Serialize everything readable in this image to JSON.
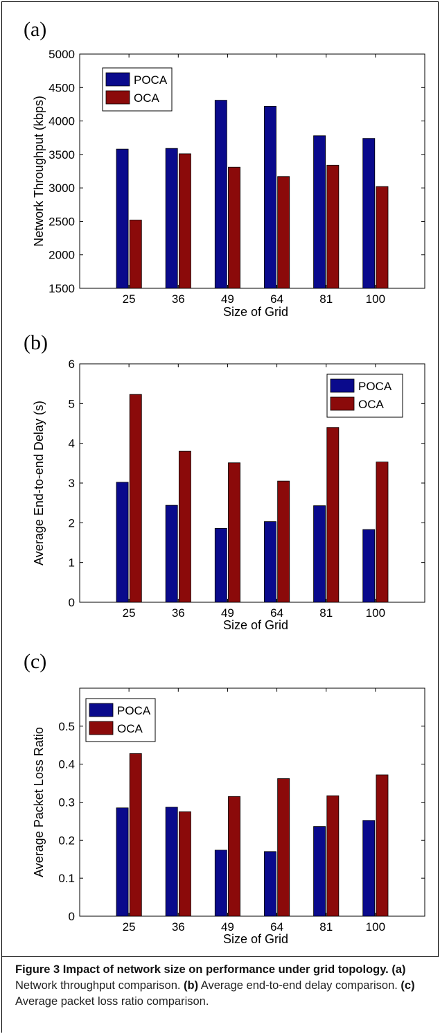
{
  "chart_data": [
    {
      "type": "bar",
      "panel_label": "(a)",
      "categories": [
        "25",
        "36",
        "49",
        "64",
        "81",
        "100"
      ],
      "series": [
        {
          "name": "POCA",
          "color": "#0a0a8c",
          "values": [
            3580,
            3590,
            4310,
            4220,
            3780,
            3740
          ]
        },
        {
          "name": "OCA",
          "color": "#8b0a0a",
          "values": [
            2520,
            3510,
            3310,
            3170,
            3340,
            3020
          ]
        }
      ],
      "xlabel": "Size of Grid",
      "ylabel": "Network Throughput (kbps)",
      "ylim": [
        1500,
        5000
      ],
      "yticks": [
        "1500",
        "2000",
        "2500",
        "3000",
        "3500",
        "4000",
        "4500",
        "5000"
      ],
      "grid": false,
      "legend": "top-left"
    },
    {
      "type": "bar",
      "panel_label": "(b)",
      "categories": [
        "25",
        "36",
        "49",
        "64",
        "81",
        "100"
      ],
      "series": [
        {
          "name": "POCA",
          "color": "#0a0a8c",
          "values": [
            3.02,
            2.44,
            1.86,
            2.03,
            2.43,
            1.83
          ]
        },
        {
          "name": "OCA",
          "color": "#8b0a0a",
          "values": [
            5.23,
            3.8,
            3.51,
            3.05,
            4.4,
            3.53
          ]
        }
      ],
      "xlabel": "Size of Grid",
      "ylabel": "Average End-to-end Delay (s)",
      "ylim": [
        0,
        6
      ],
      "yticks": [
        "0",
        "1",
        "2",
        "3",
        "4",
        "5",
        "6"
      ],
      "grid": false,
      "legend": "top-right"
    },
    {
      "type": "bar",
      "panel_label": "(c)",
      "categories": [
        "25",
        "36",
        "49",
        "64",
        "81",
        "100"
      ],
      "series": [
        {
          "name": "POCA",
          "color": "#0a0a8c",
          "values": [
            0.285,
            0.287,
            0.174,
            0.17,
            0.236,
            0.252
          ]
        },
        {
          "name": "OCA",
          "color": "#8b0a0a",
          "values": [
            0.428,
            0.275,
            0.315,
            0.362,
            0.317,
            0.372
          ]
        }
      ],
      "xlabel": "Size of Grid",
      "ylabel": "Average Packet Loss Ratio",
      "ylim": [
        0,
        0.6
      ],
      "yticks": [
        "0",
        "0.1",
        "0.2",
        "0.3",
        "0.4",
        "0.5"
      ],
      "grid": false,
      "legend": "top-left"
    }
  ],
  "caption": {
    "figure_label": "Figure 3 Impact of network size on performance under grid topology.",
    "part_a_label": "(a)",
    "part_a_text": " Network throughput comparison. ",
    "part_b_label": "(b)",
    "part_b_text": " Average end-to-end delay comparison. ",
    "part_c_label": "(c)",
    "part_c_text": " Average packet loss ratio comparison."
  }
}
